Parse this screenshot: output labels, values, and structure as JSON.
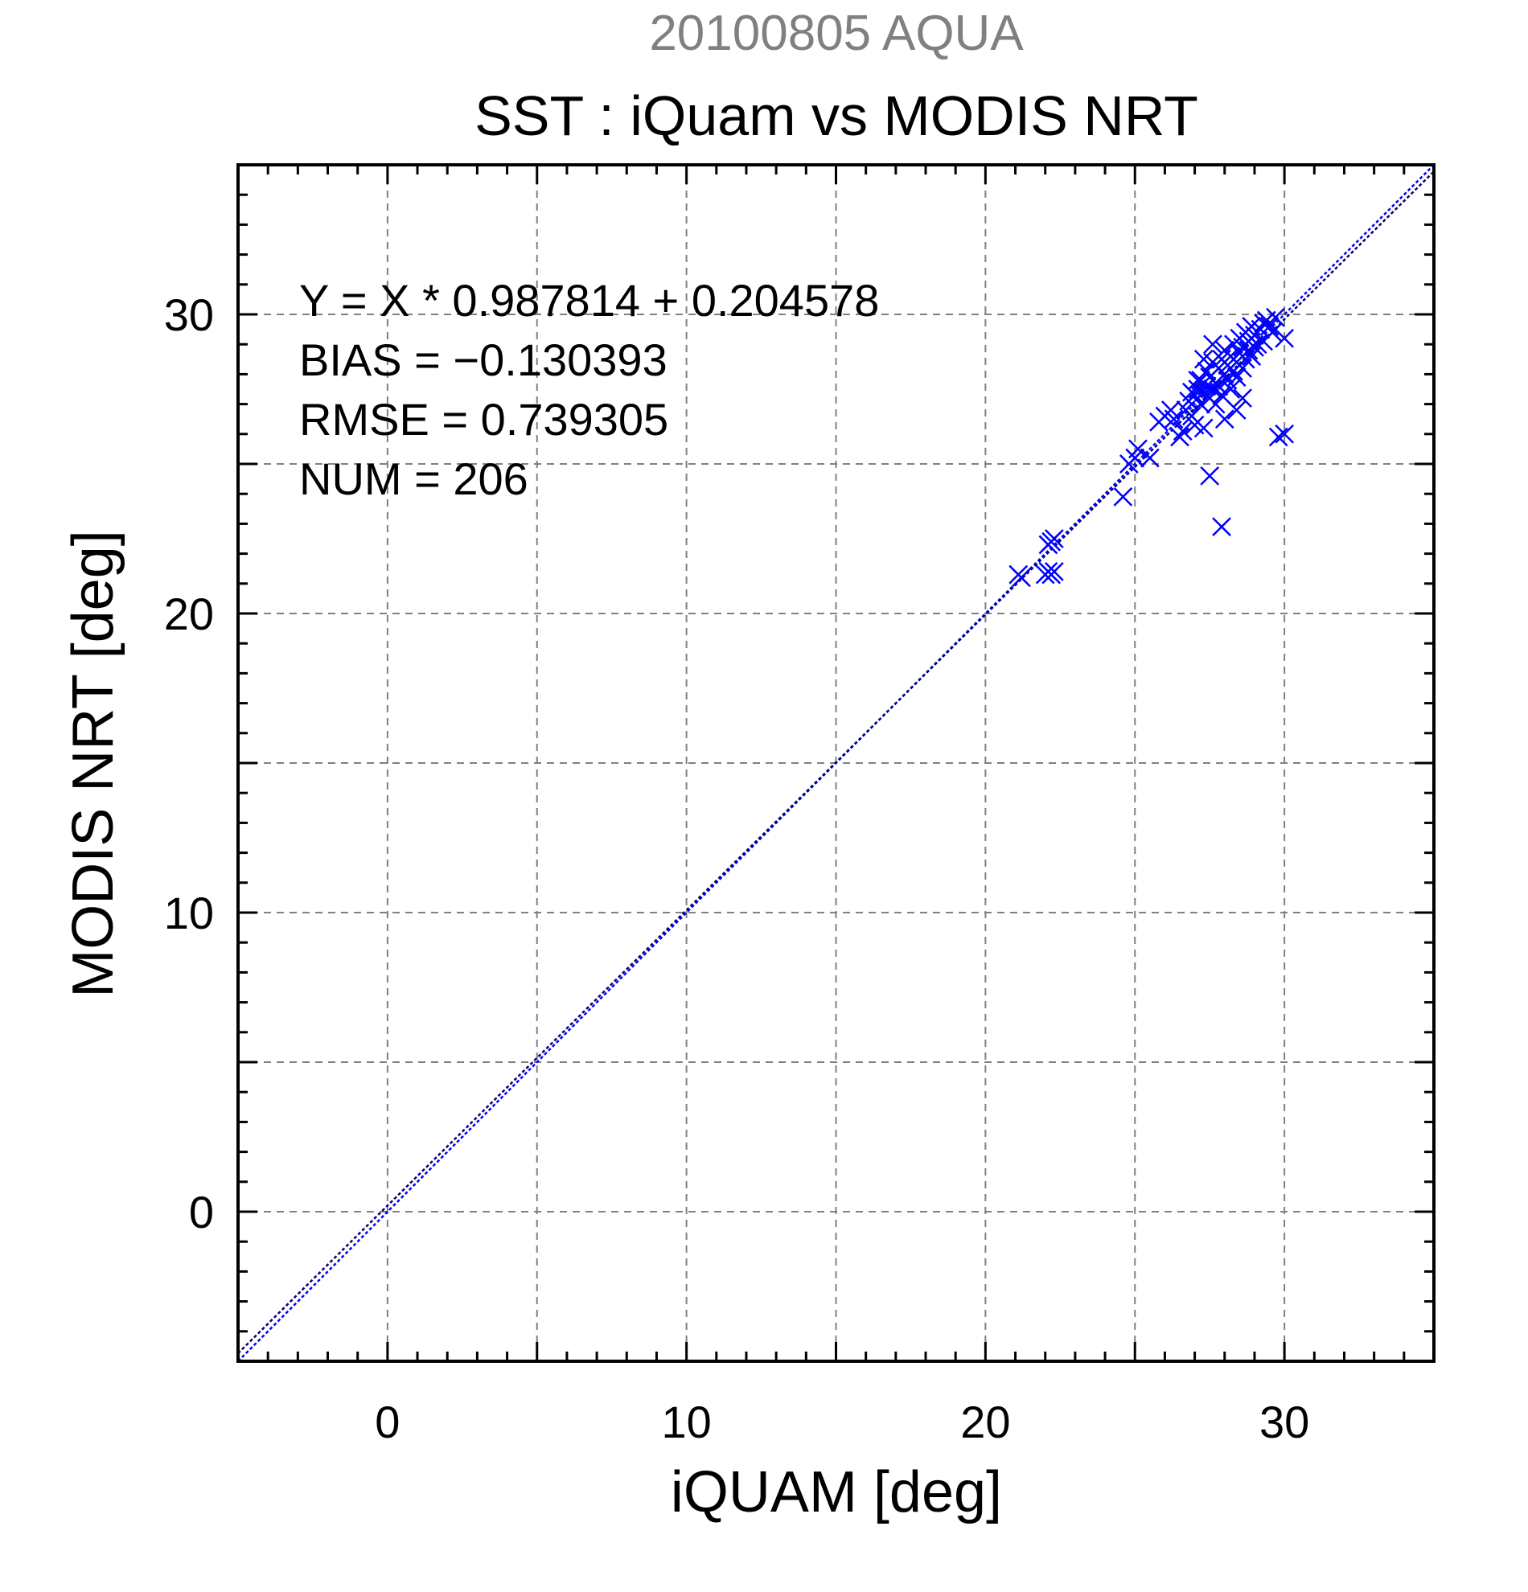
{
  "chart_data": {
    "type": "scatter",
    "supertitle": "20100805 AQUA",
    "title": "SST : iQuam vs MODIS NRT",
    "xlabel": "iQUAM [deg]",
    "ylabel": "MODIS NRT [deg]",
    "xlim": [
      -5,
      35
    ],
    "ylim": [
      -5,
      35
    ],
    "xticks": [
      0,
      10,
      20,
      30
    ],
    "yticks": [
      0,
      10,
      20,
      30
    ],
    "grid": true,
    "colors": {
      "supertitle": "#808080",
      "markers": "#0000ff",
      "identity_line": "#0000ff",
      "fit_line": "#000080",
      "grid": "#808080"
    },
    "stats": [
      "Y = X * 0.987814 + 0.204578",
      "BIAS = −0.130393",
      "RMSE = 0.739305",
      "NUM = 206"
    ],
    "lines": [
      {
        "kind": "identity",
        "slope": 1.0,
        "intercept": 0.0
      },
      {
        "kind": "fit",
        "slope": 0.987814,
        "intercept": 0.204578
      }
    ],
    "series": [
      {
        "marker": "x",
        "points": [
          [
            21.1,
            21.3
          ],
          [
            21.2,
            21.2
          ],
          [
            22.0,
            21.3
          ],
          [
            22.1,
            21.4
          ],
          [
            22.2,
            21.3
          ],
          [
            22.3,
            21.4
          ],
          [
            22.1,
            22.3
          ],
          [
            22.2,
            22.4
          ],
          [
            22.3,
            22.5
          ],
          [
            24.6,
            23.9
          ],
          [
            24.8,
            25.0
          ],
          [
            25.0,
            25.2
          ],
          [
            25.1,
            25.5
          ],
          [
            25.5,
            25.2
          ],
          [
            25.8,
            26.4
          ],
          [
            26.0,
            26.6
          ],
          [
            26.2,
            26.8
          ],
          [
            26.3,
            26.5
          ],
          [
            26.5,
            25.9
          ],
          [
            26.7,
            26.8
          ],
          [
            26.8,
            27.1
          ],
          [
            26.9,
            26.6
          ],
          [
            27.0,
            27.3
          ],
          [
            27.1,
            27.5
          ],
          [
            27.2,
            27.0
          ],
          [
            27.2,
            27.8
          ],
          [
            27.3,
            27.4
          ],
          [
            27.3,
            26.2
          ],
          [
            27.4,
            27.6
          ],
          [
            27.4,
            28.1
          ],
          [
            27.5,
            27.2
          ],
          [
            27.5,
            27.9
          ],
          [
            27.6,
            27.5
          ],
          [
            27.6,
            28.4
          ],
          [
            27.7,
            27.7
          ],
          [
            27.7,
            27.0
          ],
          [
            27.8,
            28.2
          ],
          [
            27.8,
            27.6
          ],
          [
            27.9,
            28.5
          ],
          [
            27.9,
            27.3
          ],
          [
            28.0,
            28.0
          ],
          [
            28.0,
            28.8
          ],
          [
            28.1,
            27.8
          ],
          [
            28.1,
            28.3
          ],
          [
            28.2,
            28.6
          ],
          [
            28.2,
            27.5
          ],
          [
            28.3,
            29.0
          ],
          [
            28.3,
            28.1
          ],
          [
            28.4,
            28.4
          ],
          [
            28.4,
            27.9
          ],
          [
            28.5,
            28.7
          ],
          [
            28.5,
            29.2
          ],
          [
            28.6,
            28.2
          ],
          [
            28.6,
            28.9
          ],
          [
            28.7,
            29.4
          ],
          [
            28.7,
            28.5
          ],
          [
            28.8,
            28.8
          ],
          [
            28.8,
            29.1
          ],
          [
            28.9,
            28.6
          ],
          [
            29.0,
            29.3
          ],
          [
            29.0,
            28.9
          ],
          [
            29.1,
            29.0
          ],
          [
            29.2,
            29.5
          ],
          [
            29.3,
            29.7
          ],
          [
            29.3,
            29.1
          ],
          [
            29.4,
            29.8
          ],
          [
            29.5,
            29.6
          ],
          [
            29.6,
            29.4
          ],
          [
            30.0,
            29.2
          ],
          [
            27.5,
            24.6
          ],
          [
            27.9,
            22.9
          ],
          [
            28.0,
            26.5
          ],
          [
            30.0,
            26.0
          ],
          [
            29.8,
            25.9
          ],
          [
            27.0,
            26.3
          ],
          [
            26.6,
            26.1
          ],
          [
            27.3,
            28.5
          ],
          [
            27.6,
            29.0
          ],
          [
            28.4,
            26.8
          ],
          [
            28.6,
            27.2
          ],
          [
            27.1,
            27.8
          ],
          [
            26.9,
            27.4
          ],
          [
            28.9,
            29.6
          ],
          [
            29.7,
            29.9
          ]
        ]
      }
    ]
  }
}
